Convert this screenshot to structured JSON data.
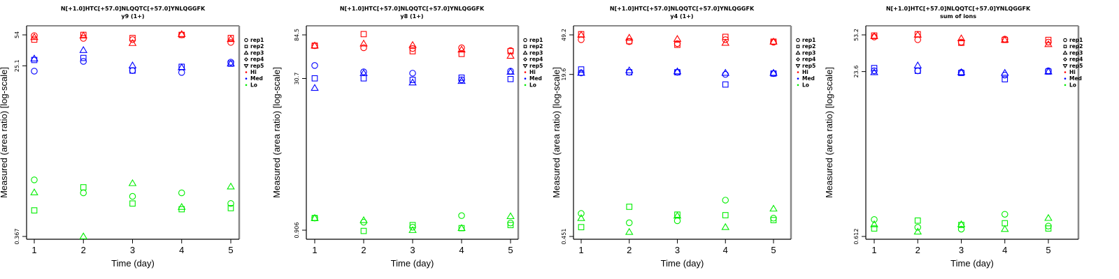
{
  "colors": {
    "Hi": "#ff0000",
    "Med": "#0000ff",
    "Lo": "#00ee00",
    "frame_dark": "#000000",
    "frame_light": "#888888"
  },
  "legend": {
    "items": [
      {
        "label": "rep1",
        "shape": "circle"
      },
      {
        "label": "rep2",
        "shape": "square"
      },
      {
        "label": "rep3",
        "shape": "triangle"
      },
      {
        "label": "rep4",
        "shape": "diamond"
      },
      {
        "label": "rep5",
        "shape": "triangle-down"
      },
      {
        "label": "Hi",
        "shape": "dot",
        "group": "Hi"
      },
      {
        "label": "Med",
        "shape": "dot",
        "group": "Med"
      },
      {
        "label": "Lo",
        "shape": "dot",
        "group": "Lo"
      }
    ]
  },
  "chart_data": [
    {
      "type": "scatter",
      "title": "N[+1.0]HTC[+57.0]NLQQTC[+57.0]YNLQGGFK",
      "subtitle": "y9 (1+)",
      "xlabel": "Time (day)",
      "ylabel": "Measured (area ratio) [log-scale]",
      "yscale": "log",
      "x_ticks": [
        "1",
        "2",
        "3",
        "4",
        "5"
      ],
      "y_ticks": [
        {
          "value": 54,
          "label": "54"
        },
        {
          "value": 25.1,
          "label": "25.1"
        },
        {
          "value": 0.367,
          "label": "0.367"
        }
      ],
      "ylim": [
        0.31,
        60
      ],
      "series": [
        {
          "group": "Hi",
          "rep": "rep1",
          "values": [
            53,
            49.5,
            48,
            54,
            44.8
          ]
        },
        {
          "group": "Hi",
          "rep": "rep2",
          "values": [
            48,
            54,
            50,
            54,
            50
          ]
        },
        {
          "group": "Hi",
          "rep": "rep3",
          "values": [
            51,
            53,
            44,
            55,
            48.5
          ]
        },
        {
          "group": "Med",
          "rep": "rep1",
          "values": [
            22,
            28,
            22.3,
            21.3,
            27.5
          ]
        },
        {
          "group": "Med",
          "rep": "rep2",
          "values": [
            29,
            30.5,
            22.3,
            24.5,
            26.5
          ]
        },
        {
          "group": "Med",
          "rep": "rep3",
          "values": [
            30,
            37,
            25.3,
            24.1,
            26.5
          ]
        },
        {
          "group": "Lo",
          "rep": "rep1",
          "values": [
            1.49,
            1.08,
            0.99,
            1.08,
            0.83
          ]
        },
        {
          "group": "Lo",
          "rep": "rep2",
          "values": [
            0.7,
            1.24,
            0.83,
            0.72,
            0.74
          ]
        },
        {
          "group": "Lo",
          "rep": "rep3",
          "values": [
            1.09,
            0.367,
            1.37,
            0.76,
            1.26
          ]
        }
      ]
    },
    {
      "type": "scatter",
      "title": "N[+1.0]HTC[+57.0]NLQQTC[+57.0]YNLQGGFK",
      "subtitle": "y8 (1+)",
      "xlabel": "Time (day)",
      "ylabel": "Measured (area ratio) [log-scale]",
      "yscale": "log",
      "x_ticks": [
        "1",
        "2",
        "3",
        "4",
        "5"
      ],
      "y_ticks": [
        {
          "value": 84.5,
          "label": "84.5"
        },
        {
          "value": 30.7,
          "label": "30.7"
        },
        {
          "value": 0.906,
          "label": "0.906"
        }
      ],
      "ylim": [
        0.79,
        95
      ],
      "series": [
        {
          "group": "Hi",
          "rep": "rep1",
          "values": [
            65.8,
            62.6,
            61.6,
            62.6,
            58.7
          ]
        },
        {
          "group": "Hi",
          "rep": "rep2",
          "values": [
            65.8,
            86,
            57.8,
            54.3,
            57.8
          ]
        },
        {
          "group": "Hi",
          "rep": "rep3",
          "values": [
            65.8,
            68.9,
            66.7,
            60,
            51.8
          ]
        },
        {
          "group": "Med",
          "rep": "rep1",
          "values": [
            41.5,
            35.8,
            34.7,
            29.8,
            36.4
          ]
        },
        {
          "group": "Med",
          "rep": "rep2",
          "values": [
            30.8,
            30.8,
            29.7,
            31.3,
            30.3
          ]
        },
        {
          "group": "Med",
          "rep": "rep3",
          "values": [
            24.6,
            34.7,
            27.9,
            28.9,
            35.8
          ]
        },
        {
          "group": "Lo",
          "rep": "rep1",
          "values": [
            1.2,
            1.09,
            0.97,
            1.27,
            1.07
          ]
        },
        {
          "group": "Lo",
          "rep": "rep2",
          "values": [
            1.2,
            0.89,
            1.02,
            0.95,
            1.02
          ]
        },
        {
          "group": "Lo",
          "rep": "rep3",
          "values": [
            1.2,
            1.14,
            0.906,
            0.95,
            1.25
          ]
        }
      ]
    },
    {
      "type": "scatter",
      "title": "N[+1.0]HTC[+57.0]NLQQTC[+57.0]YNLQGGFK",
      "subtitle": "y4 (1+)",
      "xlabel": "Time (day)",
      "ylabel": "Measured (area ratio) [log-scale]",
      "yscale": "log",
      "x_ticks": [
        "1",
        "2",
        "3",
        "4",
        "5"
      ],
      "y_ticks": [
        {
          "value": 49.2,
          "label": "49.2"
        },
        {
          "value": 19.6,
          "label": "19.6"
        },
        {
          "value": 0.451,
          "label": "0.451"
        }
      ],
      "ylim": [
        0.39,
        55
      ],
      "series": [
        {
          "group": "Hi",
          "rep": "rep1",
          "values": [
            44,
            42,
            40.2,
            44,
            41.5
          ]
        },
        {
          "group": "Hi",
          "rep": "rep2",
          "values": [
            50,
            42.5,
            39,
            47,
            42
          ]
        },
        {
          "group": "Hi",
          "rep": "rep3",
          "values": [
            49.2,
            46,
            44.7,
            40.8,
            42
          ]
        },
        {
          "group": "Med",
          "rep": "rep1",
          "values": [
            20.3,
            20.6,
            20.6,
            19.6,
            20
          ]
        },
        {
          "group": "Med",
          "rep": "rep2",
          "values": [
            22,
            20.6,
            20.6,
            15.5,
            20
          ]
        },
        {
          "group": "Med",
          "rep": "rep3",
          "values": [
            20.3,
            21.5,
            21,
            20.3,
            20.3
          ]
        },
        {
          "group": "Lo",
          "rep": "rep1",
          "values": [
            0.77,
            0.62,
            0.65,
            1.05,
            0.69
          ]
        },
        {
          "group": "Lo",
          "rep": "rep2",
          "values": [
            0.56,
            0.9,
            0.75,
            0.74,
            0.66
          ]
        },
        {
          "group": "Lo",
          "rep": "rep3",
          "values": [
            0.69,
            0.5,
            0.73,
            0.56,
            0.86
          ]
        }
      ]
    },
    {
      "type": "scatter",
      "title": "N[+1.0]HTC[+57.0]NLQQTC[+57.0]YNLQGGFK",
      "subtitle": "sum of ions",
      "xlabel": "Time (day)",
      "ylabel": "Measured (area ratio) [log-scale]",
      "yscale": "log",
      "x_ticks": [
        "1",
        "2",
        "3",
        "4",
        "5"
      ],
      "y_ticks": [
        {
          "value": 53.2,
          "label": "53.2"
        },
        {
          "value": 23.6,
          "label": "23.6"
        },
        {
          "value": 0.612,
          "label": "0.612"
        }
      ],
      "ylim": [
        0.54,
        60
      ],
      "series": [
        {
          "group": "Hi",
          "rep": "rep1",
          "values": [
            50.8,
            47.8,
            45.3,
            48.4,
            45.3
          ]
        },
        {
          "group": "Hi",
          "rep": "rep2",
          "values": [
            52.4,
            54,
            44.6,
            47.6,
            47.6
          ]
        },
        {
          "group": "Hi",
          "rep": "rep3",
          "values": [
            51.6,
            53.2,
            49.2,
            47.6,
            43.2
          ]
        },
        {
          "group": "Med",
          "rep": "rep1",
          "values": [
            24,
            24,
            23.2,
            21.8,
            24
          ]
        },
        {
          "group": "Med",
          "rep": "rep2",
          "values": [
            25.5,
            24,
            22.9,
            19.9,
            23.6
          ]
        },
        {
          "group": "Med",
          "rep": "rep3",
          "values": [
            23.2,
            27,
            23.2,
            22.9,
            23.6
          ]
        },
        {
          "group": "Lo",
          "rep": "rep1",
          "values": [
            0.89,
            0.75,
            0.72,
            1.0,
            0.77
          ]
        },
        {
          "group": "Lo",
          "rep": "rep2",
          "values": [
            0.73,
            0.87,
            0.79,
            0.82,
            0.73
          ]
        },
        {
          "group": "Lo",
          "rep": "rep3",
          "values": [
            0.8,
            0.68,
            0.8,
            0.72,
            0.92
          ]
        }
      ]
    }
  ]
}
